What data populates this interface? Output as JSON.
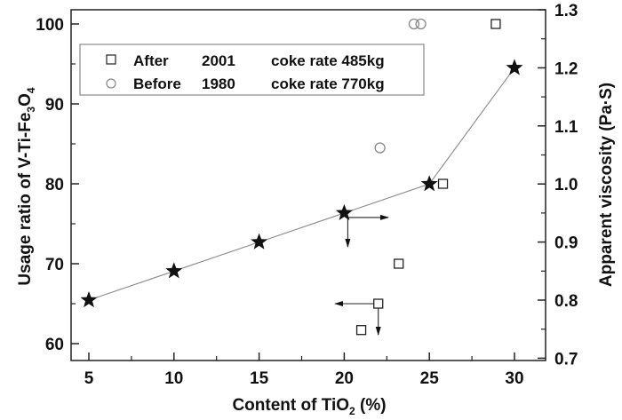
{
  "chart_data": {
    "type": "scatter",
    "title": "",
    "xlabel": "Content of TiO2 (%)",
    "xlabel_parts": {
      "main": "Content of TiO",
      "sub": "2",
      "tail": " (%)"
    },
    "ylabel_left": "Usage ratio of V-Ti-Fe3O4",
    "ylabel_left_parts": {
      "a": "Usage ratio of V-Ti-Fe",
      "sub1": "3",
      "b": "O",
      "sub2": "4"
    },
    "ylabel_right": "Apparent viscosity (Pa·S)",
    "xlim": [
      4,
      32
    ],
    "ylim_left": [
      58,
      102.2
    ],
    "ylim_right": [
      0.7,
      1.3
    ],
    "x_ticks": [
      "5",
      "10",
      "15",
      "20",
      "25",
      "30"
    ],
    "x_tick_values": [
      5,
      10,
      15,
      20,
      25,
      30
    ],
    "y_left_ticks": [
      "60",
      "70",
      "80",
      "90",
      "100"
    ],
    "y_left_tick_values": [
      60,
      70,
      80,
      90,
      100
    ],
    "y_right_ticks": [
      "0.7",
      "0.8",
      "0.9",
      "1.0",
      "1.1",
      "1.2",
      "1.3"
    ],
    "y_right_tick_values": [
      0.7,
      0.8,
      0.9,
      1.0,
      1.1,
      1.2,
      1.3
    ],
    "grid": false,
    "legend_position": "top-left",
    "legend": [
      {
        "marker": "square",
        "label": "After",
        "year": "2001",
        "note": "coke rate 485kg"
      },
      {
        "marker": "circle",
        "label": "Before",
        "year": "1980",
        "note": "coke rate 770kg"
      }
    ],
    "series": [
      {
        "name": "After 2001 coke rate 485kg",
        "marker": "square",
        "axis": "left",
        "x": [
          21,
          22,
          23.2,
          25.8,
          28.9
        ],
        "y": [
          61.7,
          65,
          70,
          80,
          100
        ]
      },
      {
        "name": "Before 1980 coke rate 770kg",
        "marker": "circle",
        "axis": "left",
        "x": [
          22.1,
          24.1,
          24.5
        ],
        "y": [
          84.5,
          100,
          100
        ]
      },
      {
        "name": "Apparent viscosity",
        "marker": "star",
        "axis": "right",
        "line": true,
        "x": [
          5,
          10,
          15,
          20,
          25,
          30
        ],
        "y": [
          0.8,
          0.85,
          0.9,
          0.95,
          1.0,
          1.2
        ]
      }
    ],
    "annotations": [
      {
        "type": "arrow",
        "from_point": [
          20,
          0.95
        ],
        "direction": "right",
        "meaning": "points to right axis"
      },
      {
        "type": "arrow",
        "from_point": [
          20,
          0.95
        ],
        "direction": "down"
      },
      {
        "type": "arrow",
        "from_point": [
          22,
          65
        ],
        "direction": "left",
        "meaning": "points to left axis"
      },
      {
        "type": "arrow",
        "from_point": [
          22,
          65
        ],
        "direction": "down"
      }
    ],
    "colors": {
      "axis": "#222222",
      "marker": "#111111",
      "circle": "#888888",
      "line": "#888888"
    }
  }
}
